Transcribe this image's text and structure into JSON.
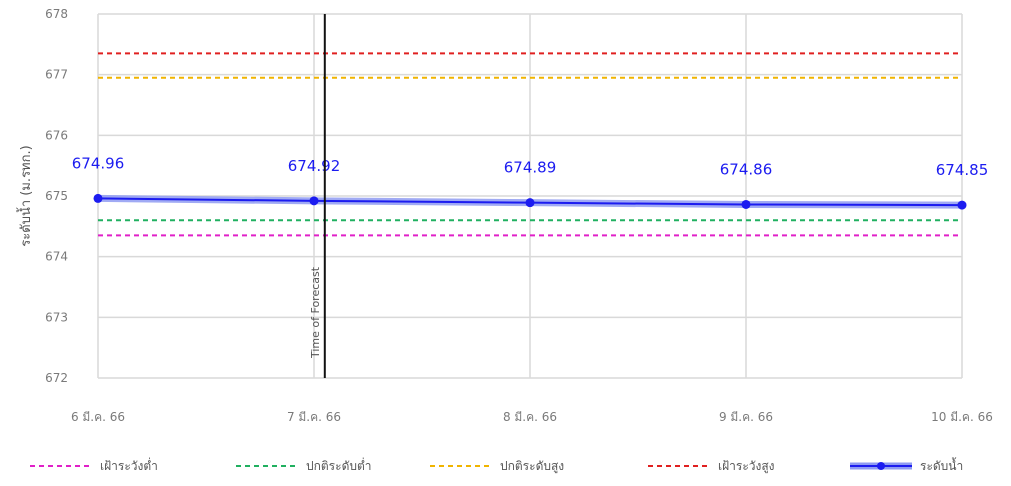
{
  "chart_data": {
    "type": "line",
    "title": "",
    "xlabel": "",
    "ylabel": "ระดับน้ำ (ม.รทก.)",
    "categories": [
      "6 มี.ค. 66",
      "7 มี.ค. 66",
      "8 มี.ค. 66",
      "9 มี.ค. 66",
      "10 มี.ค. 66"
    ],
    "ylim": [
      672,
      678
    ],
    "yticks": [
      "672",
      "673",
      "674",
      "675",
      "676",
      "677",
      "678"
    ],
    "grid": true,
    "legend_position": "bottom",
    "series": [
      {
        "name": "ระดับน้ำ",
        "values": [
          674.96,
          674.92,
          674.89,
          674.86,
          674.85
        ],
        "labels": [
          "674.96",
          "674.92",
          "674.89",
          "674.86",
          "674.85"
        ],
        "color": "#1c1cf0"
      }
    ],
    "reference_lines": [
      {
        "name": "เฝ้าระวังต่ำ",
        "value": 674.35,
        "color": "#e020c8",
        "style": "dashed"
      },
      {
        "name": "ปกติระดับต่ำ",
        "value": 674.6,
        "color": "#20b060",
        "style": "dashed"
      },
      {
        "name": "ปกติระดับสูง",
        "value": 676.95,
        "color": "#f0b400",
        "style": "dashed"
      },
      {
        "name": "เฝ้าระวังสูง",
        "value": 677.35,
        "color": "#e02020",
        "style": "dashed"
      }
    ],
    "vertical_marker": {
      "label": "Time of Forecast",
      "x_fraction": 1.05
    }
  }
}
